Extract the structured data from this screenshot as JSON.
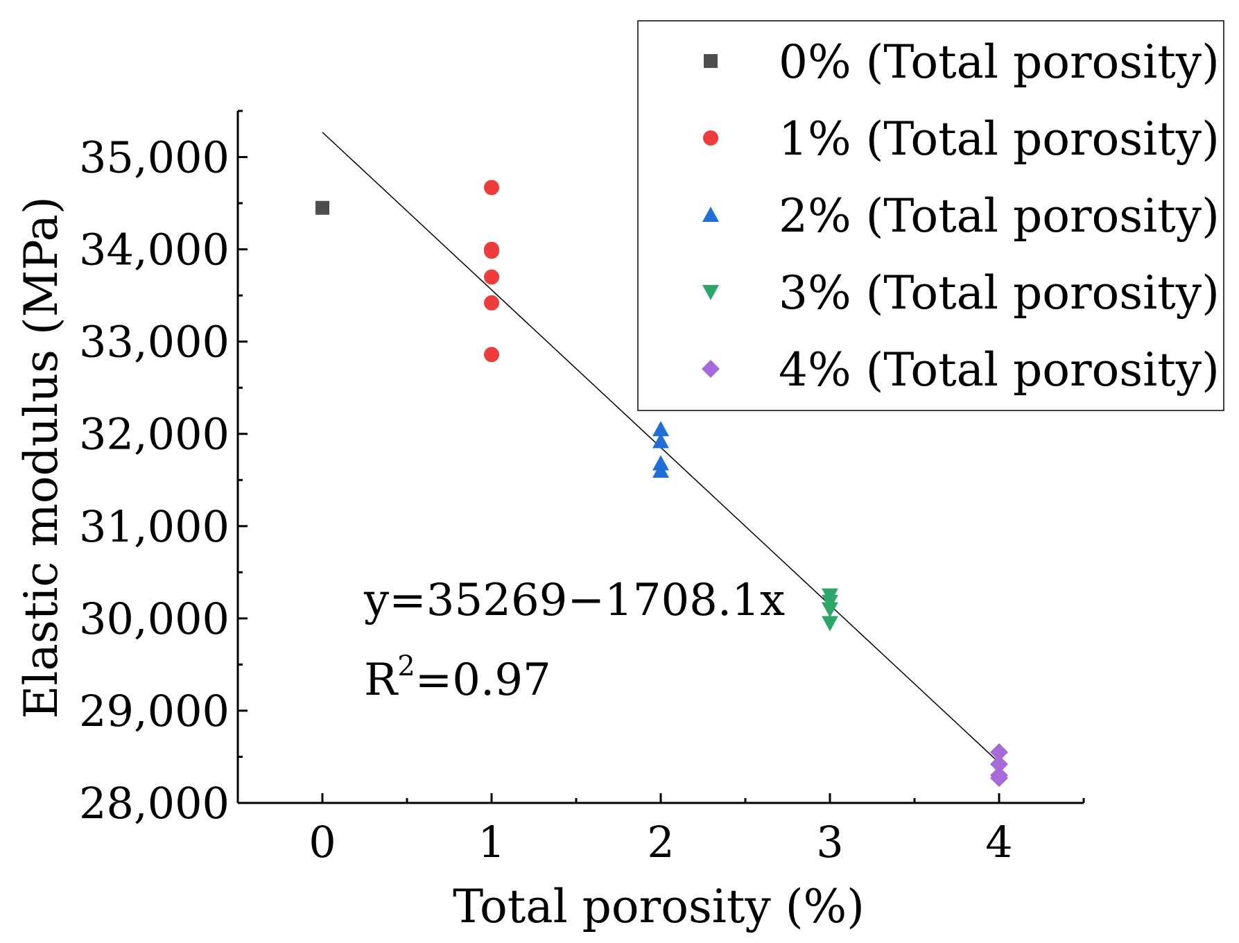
{
  "chart_data": {
    "type": "scatter",
    "title": "",
    "xlabel": "Total porosity (%)",
    "ylabel": "Elastic modulus (MPa)",
    "xlim": [
      -0.5,
      4.5
    ],
    "ylim": [
      28000,
      35500
    ],
    "xticks": [
      0,
      1,
      2,
      3,
      4
    ],
    "xtick_labels": [
      "0",
      "1",
      "2",
      "3",
      "4"
    ],
    "yticks": [
      28000,
      29000,
      30000,
      31000,
      32000,
      33000,
      34000,
      35000
    ],
    "ytick_labels": [
      "28,000",
      "29,000",
      "30,000",
      "31,000",
      "32,000",
      "33,000",
      "34,000",
      "35,000"
    ],
    "grid": false,
    "legend_position": "top-right",
    "series": [
      {
        "name": "0% (Total porosity)",
        "marker": "square",
        "color": "#4d4d4d",
        "points": [
          {
            "x": 0,
            "y": 34450
          }
        ]
      },
      {
        "name": "1% (Total porosity)",
        "marker": "circle",
        "color": "#ee3b3b",
        "points": [
          {
            "x": 1,
            "y": 34670
          },
          {
            "x": 1,
            "y": 34000
          },
          {
            "x": 1,
            "y": 33980
          },
          {
            "x": 1,
            "y": 33700
          },
          {
            "x": 1,
            "y": 33420
          },
          {
            "x": 1,
            "y": 32860
          }
        ]
      },
      {
        "name": "2% (Total porosity)",
        "marker": "triangle-up",
        "color": "#1f6fd6",
        "points": [
          {
            "x": 2,
            "y": 32050
          },
          {
            "x": 2,
            "y": 31920
          },
          {
            "x": 2,
            "y": 31680
          },
          {
            "x": 2,
            "y": 31600
          }
        ]
      },
      {
        "name": "3% (Total porosity)",
        "marker": "triangle-down",
        "color": "#2ea66a",
        "points": [
          {
            "x": 3,
            "y": 30250
          },
          {
            "x": 3,
            "y": 30180
          },
          {
            "x": 3,
            "y": 30100
          },
          {
            "x": 3,
            "y": 29950
          }
        ]
      },
      {
        "name": "4% (Total porosity)",
        "marker": "diamond",
        "color": "#a66bd9",
        "points": [
          {
            "x": 4,
            "y": 28550
          },
          {
            "x": 4,
            "y": 28420
          },
          {
            "x": 4,
            "y": 28300
          },
          {
            "x": 4,
            "y": 28270
          }
        ]
      }
    ],
    "fit": {
      "intercept": 35269,
      "slope": -1708.1,
      "x_range": [
        0,
        4
      ],
      "color": "#000000",
      "equation_prefix": "y=35269",
      "equation_minus": "−",
      "equation_suffix": "1708.1x",
      "r2_base": "R",
      "r2_exp": "2",
      "r2_value": "=0.97"
    }
  }
}
